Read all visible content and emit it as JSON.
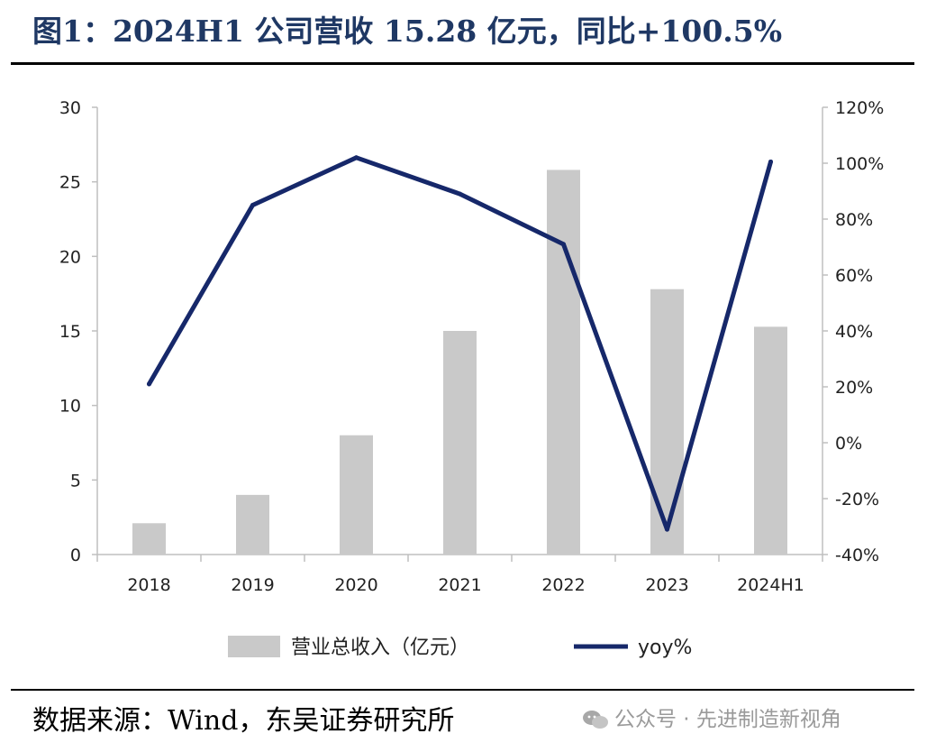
{
  "header": {
    "title": "图1：2024H1 公司营收 15.28 亿元，同比+100.5%"
  },
  "footer": {
    "source": "数据来源：Wind，东吴证券研究所",
    "watermark": "公众号 · 先进制造新视角",
    "watermark_icon": "wechat-icon"
  },
  "chart_data": {
    "type": "bar",
    "categories": [
      "2018",
      "2019",
      "2020",
      "2021",
      "2022",
      "2023",
      "2024H1"
    ],
    "series": [
      {
        "name": "营业总收入（亿元）",
        "type": "bar",
        "axis": "left",
        "color": "#c9c9c9",
        "values": [
          2.1,
          4.0,
          8.0,
          15.0,
          25.8,
          17.8,
          15.28
        ]
      },
      {
        "name": "yoy%",
        "type": "line",
        "axis": "right",
        "color": "#16286a",
        "values": [
          21,
          85,
          102,
          89,
          71,
          -31,
          100.5
        ]
      }
    ],
    "y_left": {
      "min": 0,
      "max": 30,
      "ticks": [
        "0",
        "5",
        "10",
        "15",
        "20",
        "25",
        "30"
      ]
    },
    "y_right": {
      "min": -40,
      "max": 120,
      "ticks": [
        "-40%",
        "-20%",
        "0%",
        "20%",
        "40%",
        "60%",
        "80%",
        "100%",
        "120%"
      ]
    },
    "legend": {
      "position": "bottom",
      "items": [
        "营业总收入（亿元）",
        "yoy%"
      ]
    },
    "grid": false
  }
}
